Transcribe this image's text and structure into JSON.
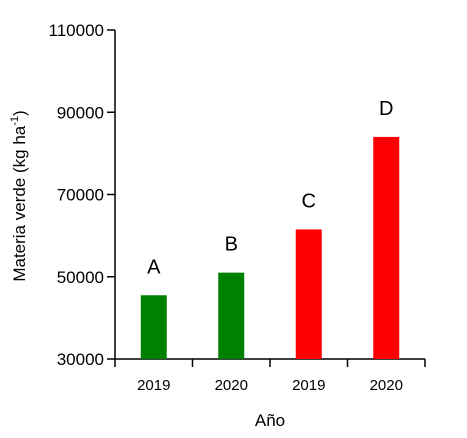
{
  "chart_data": {
    "type": "bar",
    "categories": [
      "2019",
      "2020",
      "2019",
      "2020"
    ],
    "values": [
      45500,
      51000,
      61500,
      84000
    ],
    "bar_labels": [
      "A",
      "B",
      "C",
      "D"
    ],
    "bar_colors": [
      "#008000",
      "#008000",
      "#ff0000",
      "#ff0000"
    ],
    "xlabel": "Año",
    "ylabel_main": "Materia verde (kg ha",
    "ylabel_sup": "-1",
    "ylabel_close": ")",
    "ylim": [
      30000,
      110000
    ],
    "yticks": [
      30000,
      50000,
      70000,
      90000,
      110000
    ],
    "grid": false,
    "legend": "none"
  }
}
